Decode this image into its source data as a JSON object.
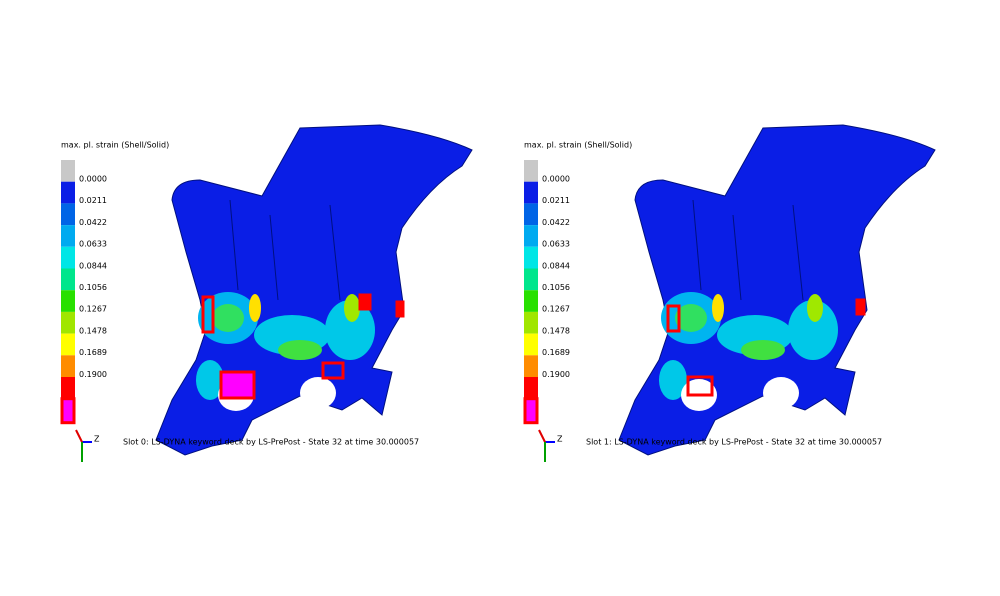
{
  "panels": [
    {
      "legend": {
        "title": "max. pl. strain (Shell/Solid)",
        "labels": [
          "0.0000",
          "0.0211",
          "0.0422",
          "0.0633",
          "0.0844",
          "0.1056",
          "0.1267",
          "0.1478",
          "0.1689",
          "0.1900"
        ]
      },
      "triad": "Z",
      "caption": "Slot 0: LS-DYNA keyword deck by LS-PrePost - State 32 at time 30.000057"
    },
    {
      "legend": {
        "title": "max. pl. strain (Shell/Solid)",
        "labels": [
          "0.0000",
          "0.0211",
          "0.0422",
          "0.0633",
          "0.0844",
          "0.1056",
          "0.1267",
          "0.1478",
          "0.1689",
          "0.1900"
        ]
      },
      "triad": "Z",
      "caption": "Slot 1: LS-DYNA keyword deck by LS-PrePost - State 32 at time 30.000057"
    }
  ]
}
